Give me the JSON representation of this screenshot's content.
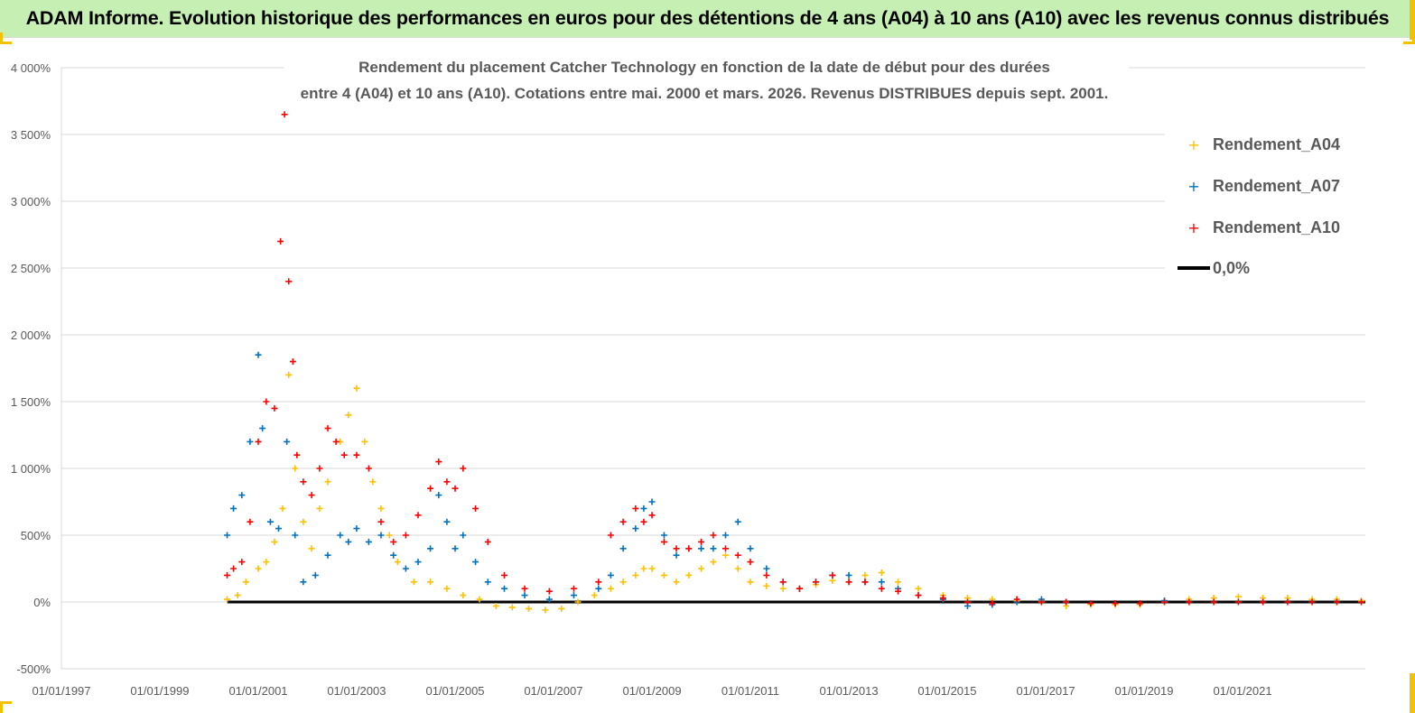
{
  "banner": {
    "text": "ADAM Informe. Evolution historique des performances en euros pour des détentions de 4 ans (A04) à 10 ans (A10) avec les revenus connus distribués"
  },
  "colors": {
    "banner_bg": "#c6efb3",
    "accent": "#f2c200",
    "A04": "#ffc000",
    "A07": "#0070c0",
    "A10": "#ff0000",
    "zero": "#000000"
  },
  "chart_data": {
    "type": "scatter",
    "title": [
      "Rendement du placement Catcher Technology  en fonction de la date de début pour des durées",
      "entre 4 (A04) et 10 ans (A10).  Cotations entre mai. 2000 et mars. 2026. Revenus DISTRIBUES depuis sept. 2001."
    ],
    "xlabel": "",
    "ylabel": "",
    "xlim": [
      "1997-01-01",
      "2023-07-01"
    ],
    "ylim": [
      -500,
      4000
    ],
    "y_ticks": [
      -500,
      0,
      500,
      1000,
      1500,
      2000,
      2500,
      3000,
      3500,
      4000
    ],
    "y_tick_labels": [
      "-500%",
      "0%",
      "500%",
      "1 000%",
      "1 500%",
      "2 000%",
      "2 500%",
      "3 000%",
      "3 500%",
      "4 000%"
    ],
    "x_ticks": [
      "1997-01-01",
      "1999-01-01",
      "2001-01-01",
      "2003-01-01",
      "2005-01-01",
      "2007-01-01",
      "2009-01-01",
      "2011-01-01",
      "2013-01-01",
      "2015-01-01",
      "2017-01-01",
      "2019-01-01",
      "2021-01-01"
    ],
    "x_tick_labels": [
      "01/01/1997",
      "01/01/1999",
      "01/01/2001",
      "01/01/2003",
      "01/01/2005",
      "01/01/2007",
      "01/01/2009",
      "01/01/2011",
      "01/01/2013",
      "01/01/2015",
      "01/01/2017",
      "01/01/2019",
      "01/01/2021"
    ],
    "grid": "horizontal",
    "legend_position": "top-right",
    "legend": [
      "Rendement_A04",
      "Rendement_A07",
      "Rendement_A10",
      "0,0%"
    ],
    "series": [
      {
        "name": "Rendement_A04",
        "x": [
          "2000-05-15",
          "2000-08-01",
          "2000-10-01",
          "2001-01-01",
          "2001-03-01",
          "2001-05-01",
          "2001-07-01",
          "2001-08-15",
          "2001-10-01",
          "2001-12-01",
          "2002-02-01",
          "2002-04-01",
          "2002-06-01",
          "2002-09-01",
          "2002-11-01",
          "2003-01-01",
          "2003-03-01",
          "2003-05-01",
          "2003-07-01",
          "2003-09-01",
          "2003-11-01",
          "2004-03-01",
          "2004-07-01",
          "2004-11-01",
          "2005-03-01",
          "2005-07-01",
          "2005-11-01",
          "2006-03-01",
          "2006-07-01",
          "2006-11-01",
          "2007-03-01",
          "2007-07-01",
          "2007-11-01",
          "2008-03-01",
          "2008-06-01",
          "2008-09-01",
          "2008-11-01",
          "2009-01-01",
          "2009-04-01",
          "2009-07-01",
          "2009-10-01",
          "2010-01-01",
          "2010-04-01",
          "2010-07-01",
          "2010-10-01",
          "2011-01-01",
          "2011-05-01",
          "2011-09-01",
          "2012-01-01",
          "2012-05-01",
          "2012-09-01",
          "2013-01-01",
          "2013-05-01",
          "2013-09-01",
          "2014-01-01",
          "2014-06-01",
          "2014-12-01",
          "2015-06-01",
          "2015-12-01",
          "2016-06-01",
          "2016-12-01",
          "2017-06-01",
          "2017-12-01",
          "2018-06-01",
          "2018-12-01",
          "2019-06-01",
          "2019-12-01",
          "2020-06-01",
          "2020-12-01",
          "2021-06-01",
          "2021-12-01",
          "2022-06-01",
          "2022-12-01",
          "2023-06-01"
        ],
        "values": [
          20,
          50,
          150,
          250,
          300,
          450,
          700,
          1700,
          1000,
          600,
          400,
          700,
          900,
          1200,
          1400,
          1600,
          1200,
          900,
          700,
          500,
          300,
          150,
          150,
          100,
          50,
          20,
          -30,
          -40,
          -50,
          -60,
          -50,
          0,
          50,
          100,
          150,
          200,
          250,
          250,
          200,
          150,
          200,
          250,
          300,
          350,
          250,
          150,
          120,
          100,
          100,
          130,
          160,
          150,
          200,
          220,
          150,
          100,
          50,
          30,
          20,
          10,
          0,
          -30,
          -20,
          -20,
          -20,
          0,
          20,
          30,
          40,
          30,
          30,
          20,
          20,
          10
        ]
      },
      {
        "name": "Rendement_A07",
        "x": [
          "2000-05-15",
          "2000-07-01",
          "2000-09-01",
          "2000-11-01",
          "2001-01-01",
          "2001-02-01",
          "2001-04-01",
          "2001-06-01",
          "2001-08-01",
          "2001-10-01",
          "2001-12-01",
          "2002-03-01",
          "2002-06-01",
          "2002-09-01",
          "2002-11-01",
          "2003-01-01",
          "2003-04-01",
          "2003-07-01",
          "2003-10-01",
          "2004-01-01",
          "2004-04-01",
          "2004-07-01",
          "2004-09-01",
          "2004-11-01",
          "2005-01-01",
          "2005-03-01",
          "2005-06-01",
          "2005-09-01",
          "2006-01-01",
          "2006-06-01",
          "2006-12-01",
          "2007-06-01",
          "2007-12-01",
          "2008-03-01",
          "2008-06-01",
          "2008-09-01",
          "2008-11-01",
          "2009-01-01",
          "2009-04-01",
          "2009-07-01",
          "2009-10-01",
          "2010-01-01",
          "2010-04-01",
          "2010-07-01",
          "2010-10-01",
          "2011-01-01",
          "2011-05-01",
          "2011-09-01",
          "2012-01-01",
          "2012-05-01",
          "2012-09-01",
          "2013-01-01",
          "2013-05-01",
          "2013-09-01",
          "2014-01-01",
          "2014-06-01",
          "2014-12-01",
          "2015-06-01",
          "2015-12-01",
          "2016-06-01",
          "2016-12-01",
          "2017-06-01",
          "2017-12-01",
          "2018-06-01",
          "2018-12-01",
          "2019-06-01"
        ],
        "values": [
          500,
          700,
          800,
          1200,
          1850,
          1300,
          600,
          550,
          1200,
          500,
          150,
          200,
          350,
          500,
          450,
          550,
          450,
          500,
          350,
          250,
          300,
          400,
          800,
          600,
          400,
          500,
          300,
          150,
          100,
          50,
          20,
          50,
          100,
          200,
          400,
          550,
          700,
          750,
          500,
          350,
          400,
          400,
          400,
          500,
          600,
          400,
          250,
          150,
          100,
          150,
          200,
          200,
          150,
          150,
          100,
          50,
          20,
          -30,
          -20,
          0,
          20,
          0,
          -10,
          -10,
          -10,
          10
        ]
      },
      {
        "name": "Rendement_A10",
        "x": [
          "2000-05-15",
          "2000-07-01",
          "2000-09-01",
          "2000-11-01",
          "2001-01-01",
          "2001-03-01",
          "2001-05-01",
          "2001-06-15",
          "2001-07-15",
          "2001-08-15",
          "2001-09-15",
          "2001-10-15",
          "2001-12-01",
          "2002-02-01",
          "2002-04-01",
          "2002-06-01",
          "2002-08-01",
          "2002-10-01",
          "2003-01-01",
          "2003-04-01",
          "2003-07-01",
          "2003-10-01",
          "2004-01-01",
          "2004-04-01",
          "2004-07-01",
          "2004-09-01",
          "2004-11-01",
          "2005-01-01",
          "2005-03-01",
          "2005-06-01",
          "2005-09-01",
          "2006-01-01",
          "2006-06-01",
          "2006-12-01",
          "2007-06-01",
          "2007-12-01",
          "2008-03-01",
          "2008-06-01",
          "2008-09-01",
          "2008-11-01",
          "2009-01-01",
          "2009-04-01",
          "2009-07-01",
          "2009-10-01",
          "2010-01-01",
          "2010-04-01",
          "2010-07-01",
          "2010-10-01",
          "2011-01-01",
          "2011-05-01",
          "2011-09-01",
          "2012-01-01",
          "2012-05-01",
          "2012-09-01",
          "2013-01-01",
          "2013-05-01",
          "2013-09-01",
          "2014-01-01",
          "2014-06-01",
          "2014-12-01",
          "2015-06-01",
          "2015-12-01",
          "2016-06-01",
          "2016-12-01",
          "2017-06-01",
          "2017-12-01",
          "2018-06-01",
          "2018-12-01",
          "2019-06-01",
          "2019-12-01",
          "2020-06-01",
          "2020-12-01",
          "2021-06-01",
          "2021-12-01",
          "2022-06-01",
          "2022-12-01",
          "2023-06-01"
        ],
        "values": [
          200,
          250,
          300,
          600,
          1200,
          1500,
          1450,
          2700,
          3650,
          2400,
          1800,
          1100,
          900,
          800,
          1000,
          1300,
          1200,
          1100,
          1100,
          1000,
          600,
          450,
          500,
          650,
          850,
          1050,
          900,
          850,
          1000,
          700,
          450,
          200,
          100,
          80,
          100,
          150,
          500,
          600,
          700,
          600,
          650,
          450,
          400,
          400,
          450,
          500,
          400,
          350,
          300,
          200,
          150,
          100,
          150,
          200,
          150,
          150,
          100,
          80,
          50,
          30,
          0,
          -10,
          20,
          0,
          0,
          -10,
          -10,
          -10,
          0,
          0,
          0,
          0,
          0,
          0,
          0,
          0,
          0
        ]
      }
    ],
    "reference_line": {
      "name": "0,0%",
      "y": 0,
      "x_from": "2000-05-15",
      "x_to": "2023-07-01"
    }
  }
}
